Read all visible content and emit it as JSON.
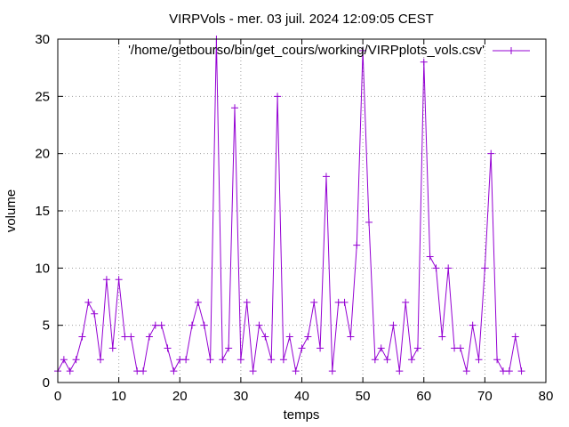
{
  "chart_data": {
    "type": "line",
    "title": "VIRPVols - mer. 03 juil. 2024 12:09:05 CEST",
    "xlabel": "temps",
    "ylabel": "volume",
    "xlim": [
      0,
      80
    ],
    "ylim": [
      0,
      30
    ],
    "xticks": [
      0,
      10,
      20,
      30,
      40,
      50,
      60,
      70,
      80
    ],
    "yticks": [
      0,
      5,
      10,
      15,
      20,
      25,
      30
    ],
    "grid": true,
    "legend_position": "top-right",
    "colors": {
      "series": "#9400d3",
      "grid": "#a0a0a0"
    },
    "series": [
      {
        "name": "'/home/getbourso/bin/get_cours/working/VIRPplots_vols.csv'",
        "marker": "plus",
        "x": [
          0,
          1,
          2,
          3,
          4,
          5,
          6,
          7,
          8,
          9,
          10,
          11,
          12,
          13,
          14,
          15,
          16,
          17,
          18,
          19,
          20,
          21,
          22,
          23,
          24,
          25,
          26,
          27,
          28,
          29,
          30,
          31,
          32,
          33,
          34,
          35,
          36,
          37,
          38,
          39,
          40,
          41,
          42,
          43,
          44,
          45,
          46,
          47,
          48,
          49,
          50,
          51,
          52,
          53,
          54,
          55,
          56,
          57,
          58,
          59,
          60,
          61,
          62,
          63,
          64,
          65,
          66,
          67,
          68,
          69,
          70,
          71,
          72,
          73,
          74,
          75,
          76
        ],
        "y": [
          1,
          2,
          1,
          2,
          4,
          7,
          6,
          2,
          9,
          3,
          9,
          4,
          4,
          1,
          1,
          4,
          5,
          5,
          3,
          1,
          2,
          2,
          5,
          7,
          5,
          2,
          30,
          2,
          3,
          24,
          2,
          7,
          1,
          5,
          4,
          2,
          25,
          2,
          4,
          1,
          3,
          4,
          7,
          3,
          18,
          1,
          7,
          7,
          4,
          12,
          29,
          14,
          2,
          3,
          2,
          5,
          1,
          7,
          2,
          3,
          28,
          11,
          10,
          4,
          10,
          3,
          3,
          1,
          5,
          2,
          10,
          20,
          2,
          1,
          1,
          4,
          1
        ]
      }
    ]
  }
}
